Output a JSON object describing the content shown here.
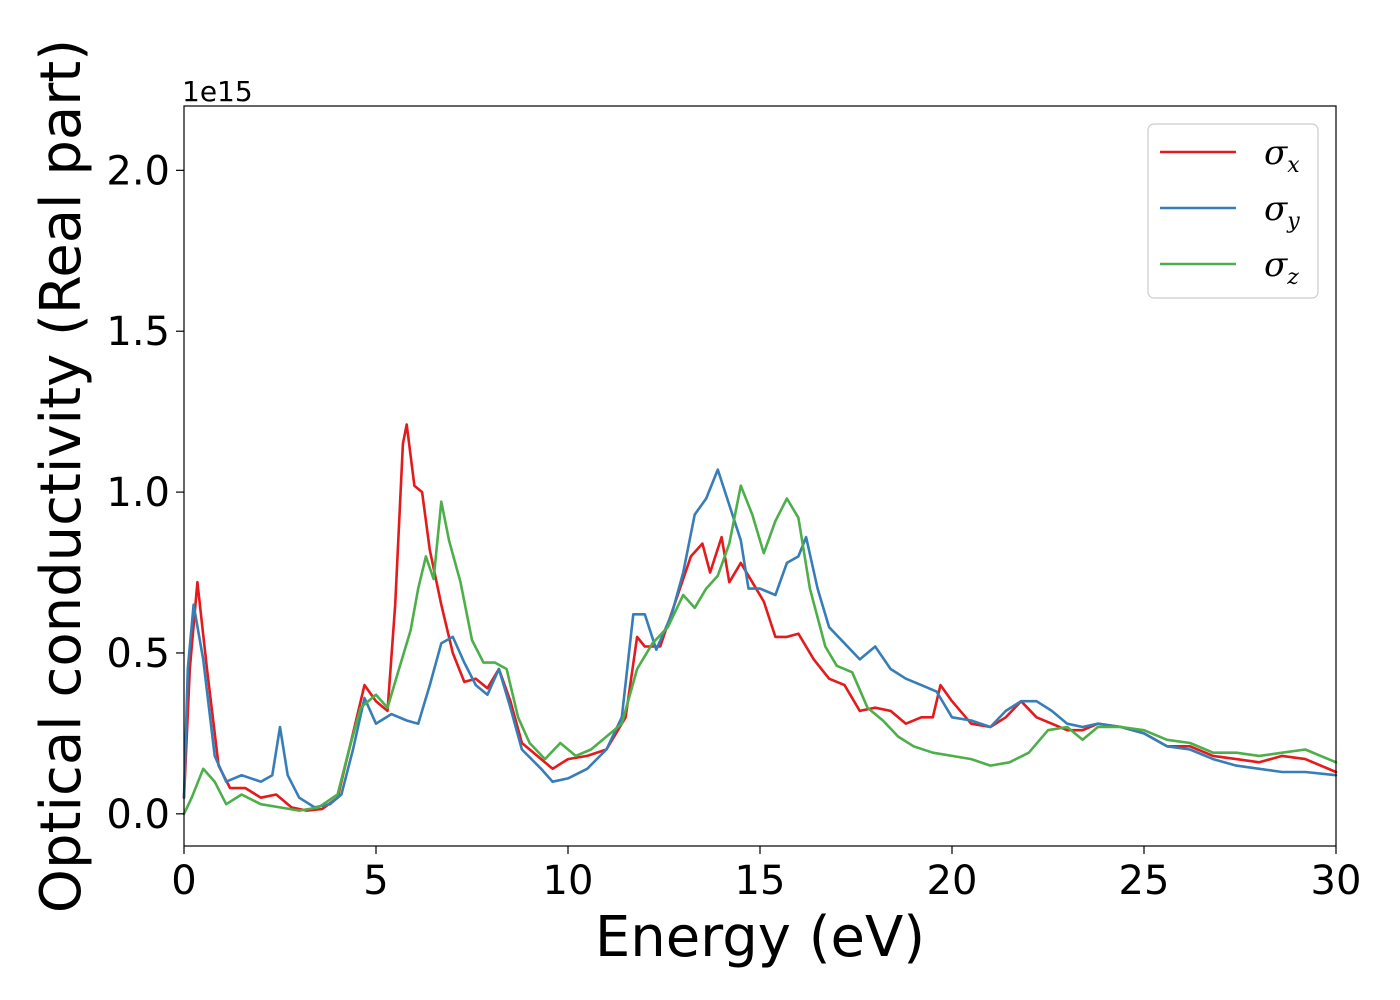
{
  "chart_data": {
    "type": "line",
    "xlabel": "Energy (eV)",
    "ylabel": "Optical conductivity (Real part)",
    "y_offset_label": "1e15",
    "xlim": [
      0,
      30
    ],
    "ylim": [
      -0.1,
      2.2
    ],
    "x_ticks": [
      0,
      5,
      10,
      15,
      20,
      25,
      30
    ],
    "x_tick_labels": [
      "0",
      "5",
      "10",
      "15",
      "20",
      "25",
      "30"
    ],
    "y_ticks": [
      0.0,
      0.5,
      1.0,
      1.5,
      2.0
    ],
    "y_tick_labels": [
      "0.0",
      "0.5",
      "1.0",
      "1.5",
      "2.0"
    ],
    "grid": false,
    "legend_position": "top-right",
    "series": [
      {
        "name": "σ_x",
        "legend_symbol": "σ",
        "legend_sub": "x",
        "color": "#e41a1c",
        "points": [
          [
            0,
            0.05
          ],
          [
            0.15,
            0.45
          ],
          [
            0.35,
            0.72
          ],
          [
            0.6,
            0.45
          ],
          [
            0.9,
            0.15
          ],
          [
            1.2,
            0.08
          ],
          [
            1.6,
            0.08
          ],
          [
            2.0,
            0.05
          ],
          [
            2.4,
            0.06
          ],
          [
            2.8,
            0.02
          ],
          [
            3.2,
            0.01
          ],
          [
            3.6,
            0.015
          ],
          [
            4.0,
            0.05
          ],
          [
            4.4,
            0.25
          ],
          [
            4.7,
            0.4
          ],
          [
            5.0,
            0.35
          ],
          [
            5.3,
            0.32
          ],
          [
            5.5,
            0.65
          ],
          [
            5.7,
            1.15
          ],
          [
            5.8,
            1.21
          ],
          [
            6.0,
            1.02
          ],
          [
            6.2,
            1.0
          ],
          [
            6.4,
            0.82
          ],
          [
            6.7,
            0.65
          ],
          [
            7.0,
            0.5
          ],
          [
            7.3,
            0.41
          ],
          [
            7.6,
            0.42
          ],
          [
            7.9,
            0.39
          ],
          [
            8.2,
            0.45
          ],
          [
            8.5,
            0.35
          ],
          [
            8.8,
            0.22
          ],
          [
            9.2,
            0.18
          ],
          [
            9.6,
            0.14
          ],
          [
            10.0,
            0.17
          ],
          [
            10.5,
            0.18
          ],
          [
            11.0,
            0.2
          ],
          [
            11.5,
            0.3
          ],
          [
            11.8,
            0.55
          ],
          [
            12.0,
            0.52
          ],
          [
            12.4,
            0.52
          ],
          [
            12.8,
            0.66
          ],
          [
            13.2,
            0.8
          ],
          [
            13.5,
            0.84
          ],
          [
            13.7,
            0.75
          ],
          [
            14.0,
            0.86
          ],
          [
            14.2,
            0.72
          ],
          [
            14.5,
            0.78
          ],
          [
            14.8,
            0.72
          ],
          [
            15.1,
            0.66
          ],
          [
            15.4,
            0.55
          ],
          [
            15.7,
            0.55
          ],
          [
            16.0,
            0.56
          ],
          [
            16.4,
            0.48
          ],
          [
            16.8,
            0.42
          ],
          [
            17.2,
            0.4
          ],
          [
            17.6,
            0.32
          ],
          [
            18.0,
            0.33
          ],
          [
            18.4,
            0.32
          ],
          [
            18.8,
            0.28
          ],
          [
            19.2,
            0.3
          ],
          [
            19.5,
            0.3
          ],
          [
            19.7,
            0.4
          ],
          [
            20.0,
            0.35
          ],
          [
            20.5,
            0.28
          ],
          [
            21.0,
            0.27
          ],
          [
            21.4,
            0.3
          ],
          [
            21.8,
            0.35
          ],
          [
            22.2,
            0.3
          ],
          [
            22.6,
            0.28
          ],
          [
            23.0,
            0.26
          ],
          [
            23.4,
            0.26
          ],
          [
            23.8,
            0.28
          ],
          [
            24.4,
            0.27
          ],
          [
            25.0,
            0.25
          ],
          [
            25.6,
            0.21
          ],
          [
            26.2,
            0.21
          ],
          [
            26.8,
            0.18
          ],
          [
            27.4,
            0.17
          ],
          [
            28.0,
            0.16
          ],
          [
            28.6,
            0.18
          ],
          [
            29.2,
            0.17
          ],
          [
            30.0,
            0.13
          ]
        ]
      },
      {
        "name": "σ_y",
        "legend_symbol": "σ",
        "legend_sub": "y",
        "color": "#377eb8",
        "points": [
          [
            0,
            0.05
          ],
          [
            0.1,
            0.45
          ],
          [
            0.25,
            0.65
          ],
          [
            0.5,
            0.48
          ],
          [
            0.8,
            0.18
          ],
          [
            1.1,
            0.1
          ],
          [
            1.5,
            0.12
          ],
          [
            2.0,
            0.1
          ],
          [
            2.3,
            0.12
          ],
          [
            2.5,
            0.27
          ],
          [
            2.7,
            0.12
          ],
          [
            3.0,
            0.05
          ],
          [
            3.4,
            0.02
          ],
          [
            3.8,
            0.03
          ],
          [
            4.1,
            0.06
          ],
          [
            4.4,
            0.2
          ],
          [
            4.7,
            0.36
          ],
          [
            5.0,
            0.28
          ],
          [
            5.4,
            0.31
          ],
          [
            5.8,
            0.29
          ],
          [
            6.1,
            0.28
          ],
          [
            6.4,
            0.4
          ],
          [
            6.7,
            0.53
          ],
          [
            7.0,
            0.55
          ],
          [
            7.3,
            0.47
          ],
          [
            7.6,
            0.4
          ],
          [
            7.9,
            0.37
          ],
          [
            8.2,
            0.45
          ],
          [
            8.5,
            0.33
          ],
          [
            8.8,
            0.2
          ],
          [
            9.3,
            0.14
          ],
          [
            9.6,
            0.1
          ],
          [
            10.0,
            0.11
          ],
          [
            10.5,
            0.14
          ],
          [
            11.0,
            0.2
          ],
          [
            11.4,
            0.3
          ],
          [
            11.7,
            0.62
          ],
          [
            12.0,
            0.62
          ],
          [
            12.3,
            0.51
          ],
          [
            12.7,
            0.62
          ],
          [
            13.0,
            0.75
          ],
          [
            13.3,
            0.93
          ],
          [
            13.6,
            0.98
          ],
          [
            13.9,
            1.07
          ],
          [
            14.2,
            0.96
          ],
          [
            14.5,
            0.85
          ],
          [
            14.7,
            0.7
          ],
          [
            15.0,
            0.7
          ],
          [
            15.4,
            0.68
          ],
          [
            15.7,
            0.78
          ],
          [
            16.0,
            0.8
          ],
          [
            16.2,
            0.86
          ],
          [
            16.5,
            0.7
          ],
          [
            16.8,
            0.58
          ],
          [
            17.2,
            0.53
          ],
          [
            17.6,
            0.48
          ],
          [
            18.0,
            0.52
          ],
          [
            18.4,
            0.45
          ],
          [
            18.8,
            0.42
          ],
          [
            19.2,
            0.4
          ],
          [
            19.6,
            0.38
          ],
          [
            20.0,
            0.3
          ],
          [
            20.5,
            0.29
          ],
          [
            21.0,
            0.27
          ],
          [
            21.4,
            0.32
          ],
          [
            21.8,
            0.35
          ],
          [
            22.2,
            0.35
          ],
          [
            22.6,
            0.32
          ],
          [
            23.0,
            0.28
          ],
          [
            23.4,
            0.27
          ],
          [
            23.8,
            0.28
          ],
          [
            24.4,
            0.27
          ],
          [
            25.0,
            0.25
          ],
          [
            25.6,
            0.21
          ],
          [
            26.2,
            0.2
          ],
          [
            26.8,
            0.17
          ],
          [
            27.4,
            0.15
          ],
          [
            28.0,
            0.14
          ],
          [
            28.6,
            0.13
          ],
          [
            29.2,
            0.13
          ],
          [
            30.0,
            0.12
          ]
        ]
      },
      {
        "name": "σ_z",
        "legend_symbol": "σ",
        "legend_sub": "z",
        "color": "#4daf4a",
        "points": [
          [
            0,
            0.0
          ],
          [
            0.2,
            0.05
          ],
          [
            0.5,
            0.14
          ],
          [
            0.8,
            0.1
          ],
          [
            1.1,
            0.03
          ],
          [
            1.5,
            0.06
          ],
          [
            2.0,
            0.03
          ],
          [
            2.5,
            0.02
          ],
          [
            3.0,
            0.01
          ],
          [
            3.5,
            0.02
          ],
          [
            4.0,
            0.06
          ],
          [
            4.3,
            0.2
          ],
          [
            4.6,
            0.33
          ],
          [
            5.0,
            0.37
          ],
          [
            5.3,
            0.33
          ],
          [
            5.6,
            0.45
          ],
          [
            5.9,
            0.57
          ],
          [
            6.1,
            0.7
          ],
          [
            6.3,
            0.8
          ],
          [
            6.5,
            0.73
          ],
          [
            6.7,
            0.97
          ],
          [
            6.9,
            0.85
          ],
          [
            7.2,
            0.72
          ],
          [
            7.5,
            0.54
          ],
          [
            7.8,
            0.47
          ],
          [
            8.1,
            0.47
          ],
          [
            8.4,
            0.45
          ],
          [
            8.7,
            0.3
          ],
          [
            9.0,
            0.22
          ],
          [
            9.4,
            0.17
          ],
          [
            9.8,
            0.22
          ],
          [
            10.2,
            0.18
          ],
          [
            10.6,
            0.2
          ],
          [
            11.0,
            0.24
          ],
          [
            11.4,
            0.28
          ],
          [
            11.8,
            0.45
          ],
          [
            12.2,
            0.53
          ],
          [
            12.6,
            0.58
          ],
          [
            13.0,
            0.68
          ],
          [
            13.3,
            0.64
          ],
          [
            13.6,
            0.7
          ],
          [
            13.9,
            0.74
          ],
          [
            14.2,
            0.84
          ],
          [
            14.5,
            1.02
          ],
          [
            14.8,
            0.93
          ],
          [
            15.1,
            0.81
          ],
          [
            15.4,
            0.91
          ],
          [
            15.7,
            0.98
          ],
          [
            16.0,
            0.92
          ],
          [
            16.3,
            0.7
          ],
          [
            16.7,
            0.52
          ],
          [
            17.0,
            0.46
          ],
          [
            17.4,
            0.44
          ],
          [
            17.8,
            0.33
          ],
          [
            18.2,
            0.29
          ],
          [
            18.6,
            0.24
          ],
          [
            19.0,
            0.21
          ],
          [
            19.5,
            0.19
          ],
          [
            20.0,
            0.18
          ],
          [
            20.5,
            0.17
          ],
          [
            21.0,
            0.15
          ],
          [
            21.5,
            0.16
          ],
          [
            22.0,
            0.19
          ],
          [
            22.5,
            0.26
          ],
          [
            23.0,
            0.27
          ],
          [
            23.4,
            0.23
          ],
          [
            23.8,
            0.27
          ],
          [
            24.4,
            0.27
          ],
          [
            25.0,
            0.26
          ],
          [
            25.6,
            0.23
          ],
          [
            26.2,
            0.22
          ],
          [
            26.8,
            0.19
          ],
          [
            27.4,
            0.19
          ],
          [
            28.0,
            0.18
          ],
          [
            28.6,
            0.19
          ],
          [
            29.2,
            0.2
          ],
          [
            30.0,
            0.16
          ]
        ]
      }
    ]
  }
}
